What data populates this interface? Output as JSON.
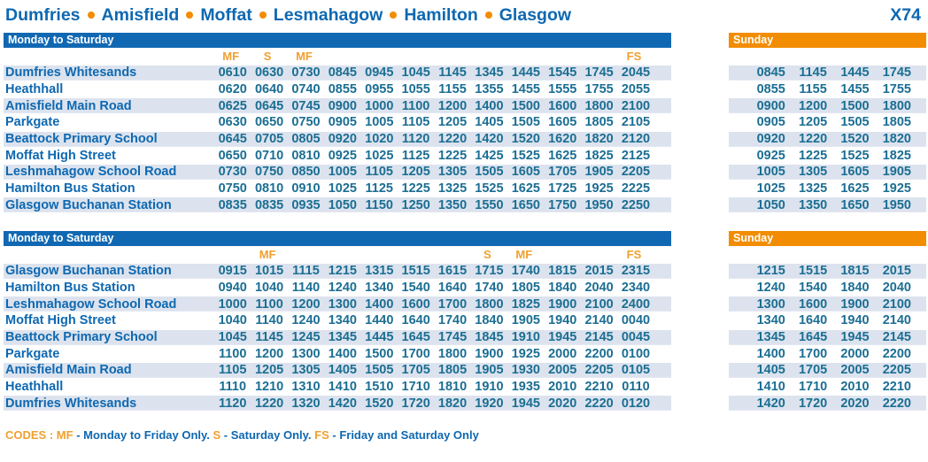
{
  "header": {
    "route_stops": [
      "Dumfries",
      "Amisfield",
      "Moffat",
      "Lesmahagow",
      "Hamilton",
      "Glasgow"
    ],
    "route_number": "X74"
  },
  "colors": {
    "bar_blue": "#1168B2",
    "bar_orange": "#F28C00",
    "text_blue": "#0E68B1",
    "time_teal": "#1B6E93",
    "code_orange": "#EFA02F",
    "row_stripe": "#DCE3EE"
  },
  "sections": [
    {
      "weekday_label": "Monday to Saturday",
      "sunday_label": "Sunday",
      "codes": [
        "MF",
        "S",
        "MF",
        "",
        "",
        "",
        "",
        "",
        "",
        "",
        "",
        "FS"
      ],
      "rows": [
        {
          "stop": "Dumfries Whitesands",
          "times": [
            "0610",
            "0630",
            "0730",
            "0845",
            "0945",
            "1045",
            "1145",
            "1345",
            "1445",
            "1545",
            "1745",
            "2045"
          ],
          "sunday": [
            "0845",
            "1145",
            "1445",
            "1745"
          ]
        },
        {
          "stop": "Heathhall",
          "times": [
            "0620",
            "0640",
            "0740",
            "0855",
            "0955",
            "1055",
            "1155",
            "1355",
            "1455",
            "1555",
            "1755",
            "2055"
          ],
          "sunday": [
            "0855",
            "1155",
            "1455",
            "1755"
          ]
        },
        {
          "stop": "Amisfield Main Road",
          "times": [
            "0625",
            "0645",
            "0745",
            "0900",
            "1000",
            "1100",
            "1200",
            "1400",
            "1500",
            "1600",
            "1800",
            "2100"
          ],
          "sunday": [
            "0900",
            "1200",
            "1500",
            "1800"
          ]
        },
        {
          "stop": "Parkgate",
          "times": [
            "0630",
            "0650",
            "0750",
            "0905",
            "1005",
            "1105",
            "1205",
            "1405",
            "1505",
            "1605",
            "1805",
            "2105"
          ],
          "sunday": [
            "0905",
            "1205",
            "1505",
            "1805"
          ]
        },
        {
          "stop": "Beattock Primary School",
          "times": [
            "0645",
            "0705",
            "0805",
            "0920",
            "1020",
            "1120",
            "1220",
            "1420",
            "1520",
            "1620",
            "1820",
            "2120"
          ],
          "sunday": [
            "0920",
            "1220",
            "1520",
            "1820"
          ]
        },
        {
          "stop": "Moffat High Street",
          "times": [
            "0650",
            "0710",
            "0810",
            "0925",
            "1025",
            "1125",
            "1225",
            "1425",
            "1525",
            "1625",
            "1825",
            "2125"
          ],
          "sunday": [
            "0925",
            "1225",
            "1525",
            "1825"
          ]
        },
        {
          "stop": "Leshmahagow School Road",
          "times": [
            "0730",
            "0750",
            "0850",
            "1005",
            "1105",
            "1205",
            "1305",
            "1505",
            "1605",
            "1705",
            "1905",
            "2205"
          ],
          "sunday": [
            "1005",
            "1305",
            "1605",
            "1905"
          ]
        },
        {
          "stop": "Hamilton Bus Station",
          "times": [
            "0750",
            "0810",
            "0910",
            "1025",
            "1125",
            "1225",
            "1325",
            "1525",
            "1625",
            "1725",
            "1925",
            "2225"
          ],
          "sunday": [
            "1025",
            "1325",
            "1625",
            "1925"
          ]
        },
        {
          "stop": "Glasgow Buchanan Station",
          "times": [
            "0835",
            "0835",
            "0935",
            "1050",
            "1150",
            "1250",
            "1350",
            "1550",
            "1650",
            "1750",
            "1950",
            "2250"
          ],
          "sunday": [
            "1050",
            "1350",
            "1650",
            "1950"
          ]
        }
      ]
    },
    {
      "weekday_label": "Monday to Saturday",
      "sunday_label": "Sunday",
      "codes": [
        "",
        "MF",
        "",
        "",
        "",
        "",
        "",
        "S",
        "MF",
        "",
        "",
        "FS"
      ],
      "rows": [
        {
          "stop": "Glasgow Buchanan Station",
          "times": [
            "0915",
            "1015",
            "1115",
            "1215",
            "1315",
            "1515",
            "1615",
            "1715",
            "1740",
            "1815",
            "2015",
            "2315"
          ],
          "sunday": [
            "1215",
            "1515",
            "1815",
            "2015"
          ]
        },
        {
          "stop": "Hamilton Bus Station",
          "times": [
            "0940",
            "1040",
            "1140",
            "1240",
            "1340",
            "1540",
            "1640",
            "1740",
            "1805",
            "1840",
            "2040",
            "2340"
          ],
          "sunday": [
            "1240",
            "1540",
            "1840",
            "2040"
          ]
        },
        {
          "stop": "Leshmahagow School Road",
          "times": [
            "1000",
            "1100",
            "1200",
            "1300",
            "1400",
            "1600",
            "1700",
            "1800",
            "1825",
            "1900",
            "2100",
            "2400"
          ],
          "sunday": [
            "1300",
            "1600",
            "1900",
            "2100"
          ]
        },
        {
          "stop": "Moffat High Street",
          "times": [
            "1040",
            "1140",
            "1240",
            "1340",
            "1440",
            "1640",
            "1740",
            "1840",
            "1905",
            "1940",
            "2140",
            "0040"
          ],
          "sunday": [
            "1340",
            "1640",
            "1940",
            "2140"
          ]
        },
        {
          "stop": "Beattock Primary School",
          "times": [
            "1045",
            "1145",
            "1245",
            "1345",
            "1445",
            "1645",
            "1745",
            "1845",
            "1910",
            "1945",
            "2145",
            "0045"
          ],
          "sunday": [
            "1345",
            "1645",
            "1945",
            "2145"
          ]
        },
        {
          "stop": "Parkgate",
          "times": [
            "1100",
            "1200",
            "1300",
            "1400",
            "1500",
            "1700",
            "1800",
            "1900",
            "1925",
            "2000",
            "2200",
            "0100"
          ],
          "sunday": [
            "1400",
            "1700",
            "2000",
            "2200"
          ]
        },
        {
          "stop": "Amisfield Main Road",
          "times": [
            "1105",
            "1205",
            "1305",
            "1405",
            "1505",
            "1705",
            "1805",
            "1905",
            "1930",
            "2005",
            "2205",
            "0105"
          ],
          "sunday": [
            "1405",
            "1705",
            "2005",
            "2205"
          ]
        },
        {
          "stop": "Heathhall",
          "times": [
            "1110",
            "1210",
            "1310",
            "1410",
            "1510",
            "1710",
            "1810",
            "1910",
            "1935",
            "2010",
            "2210",
            "0110"
          ],
          "sunday": [
            "1410",
            "1710",
            "2010",
            "2210"
          ]
        },
        {
          "stop": "Dumfries Whitesands",
          "times": [
            "1120",
            "1220",
            "1320",
            "1420",
            "1520",
            "1720",
            "1820",
            "1920",
            "1945",
            "2020",
            "2220",
            "0120"
          ],
          "sunday": [
            "1420",
            "1720",
            "2020",
            "2220"
          ]
        }
      ]
    }
  ],
  "footer": {
    "segments": [
      {
        "text": "CODES : ",
        "color": "orange"
      },
      {
        "text": "MF",
        "color": "orange"
      },
      {
        "text": " - Monday to Friday Only. ",
        "color": "blue"
      },
      {
        "text": "S",
        "color": "orange"
      },
      {
        "text": " - Saturday Only. ",
        "color": "blue"
      },
      {
        "text": "FS",
        "color": "orange"
      },
      {
        "text": " - Friday and Saturday Only",
        "color": "blue"
      }
    ]
  }
}
